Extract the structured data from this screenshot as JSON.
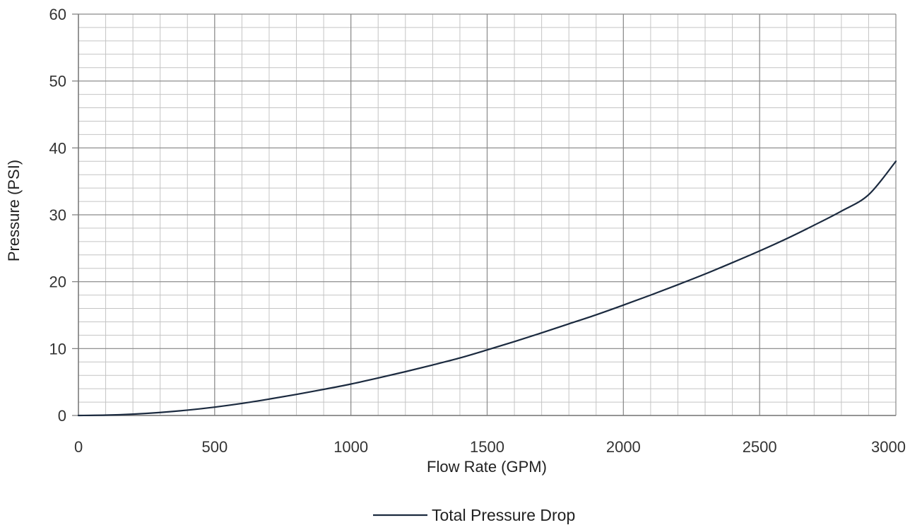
{
  "chart_data": {
    "type": "line",
    "title": "",
    "xlabel": "Flow Rate (GPM)",
    "ylabel": "Pressure (PSI)",
    "xlim": [
      0,
      3000
    ],
    "ylim": [
      0,
      60
    ],
    "x_ticks": [
      0,
      500,
      1000,
      1500,
      2000,
      2500,
      3000
    ],
    "y_ticks": [
      0,
      10,
      20,
      30,
      40,
      50,
      60
    ],
    "x_tick_labels": [
      "0",
      "500",
      "1000",
      "1500",
      "2000",
      "2500",
      "3000"
    ],
    "y_tick_labels": [
      "0",
      "10",
      "20",
      "30",
      "40",
      "50",
      "60"
    ],
    "x_minor_step": 100,
    "y_minor_step": 2,
    "grid": true,
    "legend_position": "bottom-center",
    "colors": {
      "line": "#1b2a3f",
      "grid_major": "#8a8a8a",
      "grid_minor": "#c4c4c4",
      "axis": "#7a7a7a"
    },
    "series": [
      {
        "name": "Total Pressure Drop",
        "x": [
          0,
          100,
          200,
          300,
          400,
          500,
          600,
          700,
          800,
          900,
          1000,
          1100,
          1200,
          1300,
          1400,
          1500,
          1600,
          1700,
          1800,
          1900,
          2000,
          2100,
          2200,
          2300,
          2400,
          2500,
          2600,
          2700,
          2800,
          2900,
          3000
        ],
        "y": [
          0,
          0.05,
          0.2,
          0.45,
          0.8,
          1.25,
          1.8,
          2.45,
          3.15,
          3.9,
          4.7,
          5.6,
          6.55,
          7.55,
          8.6,
          9.8,
          11.05,
          12.35,
          13.7,
          15.05,
          16.5,
          18.0,
          19.55,
          21.15,
          22.85,
          24.6,
          26.45,
          28.45,
          30.55,
          33.0,
          38.0
        ]
      }
    ]
  }
}
